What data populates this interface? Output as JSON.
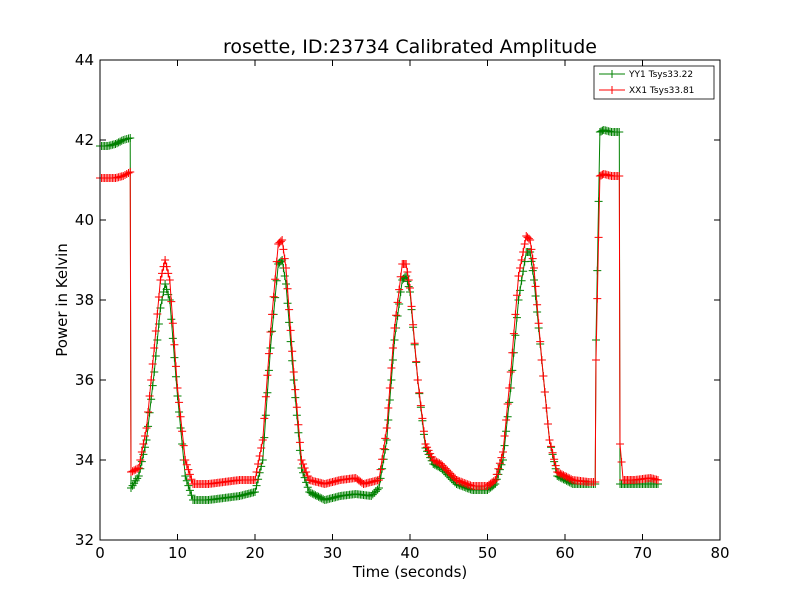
{
  "chart_data": {
    "type": "line",
    "title": "rosette, ID:23734 Calibrated Amplitude",
    "xlabel": "Time (seconds)",
    "ylabel": "Power in Kelvin",
    "xlim": [
      0,
      80
    ],
    "ylim": [
      32,
      44
    ],
    "xticks": [
      0,
      10,
      20,
      30,
      40,
      50,
      60,
      70,
      80
    ],
    "yticks": [
      32,
      34,
      36,
      38,
      40,
      42,
      44
    ],
    "grid": false,
    "legend_position": "top-right",
    "marker": "+",
    "series": [
      {
        "name": "YY1 Tsys33.22",
        "color": "#008000",
        "points": [
          [
            0.0,
            41.85
          ],
          [
            1.0,
            41.85
          ],
          [
            2.0,
            41.9
          ],
          [
            3.0,
            42.0
          ],
          [
            3.9,
            42.05
          ],
          [
            4.0,
            33.3
          ],
          [
            5.0,
            33.6
          ],
          [
            6.0,
            34.5
          ],
          [
            7.0,
            36.2
          ],
          [
            7.8,
            37.8
          ],
          [
            8.4,
            38.4
          ],
          [
            9.0,
            38.0
          ],
          [
            10.0,
            35.6
          ],
          [
            11.0,
            33.6
          ],
          [
            12.0,
            33.0
          ],
          [
            14.0,
            33.0
          ],
          [
            16.0,
            33.05
          ],
          [
            18.0,
            33.1
          ],
          [
            20.0,
            33.2
          ],
          [
            21.0,
            34.0
          ],
          [
            22.0,
            36.8
          ],
          [
            23.0,
            38.9
          ],
          [
            23.5,
            39.0
          ],
          [
            24.0,
            38.4
          ],
          [
            25.0,
            36.0
          ],
          [
            26.0,
            33.8
          ],
          [
            27.0,
            33.2
          ],
          [
            29.0,
            33.0
          ],
          [
            31.0,
            33.1
          ],
          [
            33.0,
            33.15
          ],
          [
            35.0,
            33.1
          ],
          [
            36.0,
            33.3
          ],
          [
            37.0,
            34.5
          ],
          [
            38.0,
            37.0
          ],
          [
            39.0,
            38.5
          ],
          [
            39.5,
            38.6
          ],
          [
            40.0,
            38.2
          ],
          [
            41.0,
            36.0
          ],
          [
            42.0,
            34.3
          ],
          [
            43.0,
            33.9
          ],
          [
            44.0,
            33.8
          ],
          [
            46.0,
            33.4
          ],
          [
            48.0,
            33.25
          ],
          [
            50.0,
            33.25
          ],
          [
            51.0,
            33.4
          ],
          [
            52.0,
            34.0
          ],
          [
            53.0,
            35.8
          ],
          [
            54.0,
            38.0
          ],
          [
            55.0,
            39.2
          ],
          [
            55.5,
            39.2
          ],
          [
            56.0,
            38.5
          ],
          [
            57.0,
            36.5
          ],
          [
            58.0,
            34.5
          ],
          [
            59.0,
            33.6
          ],
          [
            61.0,
            33.4
          ],
          [
            63.0,
            33.4
          ],
          [
            63.9,
            33.4
          ],
          [
            64.0,
            37.0
          ],
          [
            64.5,
            42.2
          ],
          [
            65.0,
            42.25
          ],
          [
            66.0,
            42.2
          ],
          [
            67.0,
            42.2
          ],
          [
            67.1,
            33.4
          ],
          [
            69.0,
            33.4
          ],
          [
            71.0,
            33.4
          ],
          [
            72.0,
            33.4
          ]
        ]
      },
      {
        "name": "XX1 Tsys33.81",
        "color": "#ff0000",
        "points": [
          [
            0.0,
            41.05
          ],
          [
            1.0,
            41.05
          ],
          [
            2.0,
            41.05
          ],
          [
            3.0,
            41.1
          ],
          [
            3.9,
            41.2
          ],
          [
            4.0,
            33.7
          ],
          [
            5.0,
            33.8
          ],
          [
            6.0,
            34.8
          ],
          [
            7.0,
            36.8
          ],
          [
            7.8,
            38.5
          ],
          [
            8.4,
            39.0
          ],
          [
            9.0,
            38.5
          ],
          [
            10.0,
            35.8
          ],
          [
            11.0,
            34.0
          ],
          [
            12.0,
            33.4
          ],
          [
            14.0,
            33.4
          ],
          [
            16.0,
            33.45
          ],
          [
            18.0,
            33.5
          ],
          [
            20.0,
            33.5
          ],
          [
            21.0,
            34.5
          ],
          [
            22.0,
            37.2
          ],
          [
            23.0,
            39.4
          ],
          [
            23.5,
            39.5
          ],
          [
            24.0,
            38.8
          ],
          [
            25.0,
            36.2
          ],
          [
            26.0,
            34.0
          ],
          [
            27.0,
            33.5
          ],
          [
            29.0,
            33.4
          ],
          [
            31.0,
            33.5
          ],
          [
            33.0,
            33.55
          ],
          [
            34.0,
            33.4
          ],
          [
            36.0,
            33.5
          ],
          [
            37.0,
            34.8
          ],
          [
            38.0,
            37.3
          ],
          [
            39.0,
            38.9
          ],
          [
            39.5,
            38.9
          ],
          [
            40.0,
            38.3
          ],
          [
            41.0,
            36.0
          ],
          [
            42.0,
            34.4
          ],
          [
            43.0,
            34.0
          ],
          [
            44.0,
            33.9
          ],
          [
            46.0,
            33.5
          ],
          [
            48.0,
            33.35
          ],
          [
            50.0,
            33.35
          ],
          [
            51.0,
            33.5
          ],
          [
            52.0,
            34.2
          ],
          [
            53.0,
            36.2
          ],
          [
            54.0,
            38.6
          ],
          [
            55.0,
            39.6
          ],
          [
            55.5,
            39.5
          ],
          [
            56.0,
            38.8
          ],
          [
            57.0,
            36.5
          ],
          [
            58.0,
            34.5
          ],
          [
            59.0,
            33.7
          ],
          [
            61.0,
            33.5
          ],
          [
            63.0,
            33.45
          ],
          [
            63.9,
            33.45
          ],
          [
            64.0,
            36.5
          ],
          [
            64.5,
            41.1
          ],
          [
            65.0,
            41.15
          ],
          [
            66.0,
            41.1
          ],
          [
            67.0,
            41.1
          ],
          [
            67.1,
            34.4
          ],
          [
            67.5,
            33.5
          ],
          [
            69.0,
            33.5
          ],
          [
            71.0,
            33.55
          ],
          [
            72.0,
            33.5
          ]
        ]
      }
    ]
  }
}
